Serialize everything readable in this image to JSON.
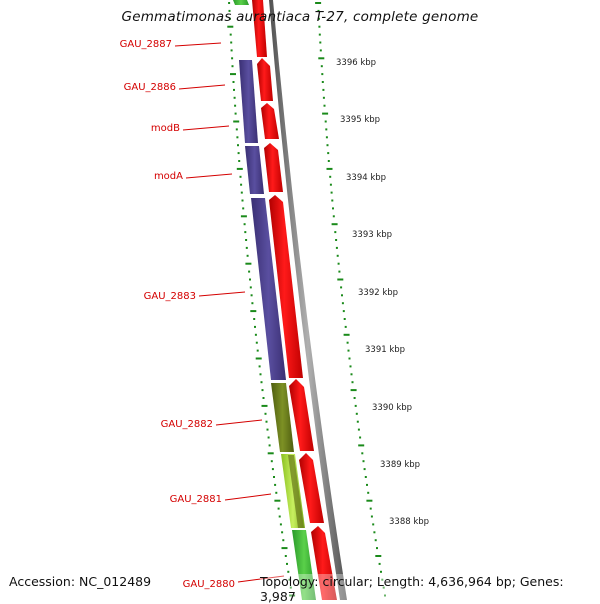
{
  "title": "Gemmatimonas aurantiaca T-27, complete genome",
  "footer": {
    "accession": "Accession: NC_012489",
    "summary": "Topology: circular; Length: 4,636,964 bp; Genes: 3,987"
  },
  "colors": {
    "forward_strand": "#ff0000",
    "gene_purple": "#4b3f8c",
    "gene_olive": "#6b7d1c",
    "gene_yellowgreen": "#9acd32",
    "gene_green": "#3cb034",
    "label_red": "#d40000",
    "tick_green": "#1a8a1a",
    "backbone_gray": "#808080"
  },
  "genes": [
    {
      "name": "GAU_2887"
    },
    {
      "name": "GAU_2886"
    },
    {
      "name": "modB"
    },
    {
      "name": "modA"
    },
    {
      "name": "GAU_2883"
    },
    {
      "name": "GAU_2882"
    },
    {
      "name": "GAU_2881"
    },
    {
      "name": "GAU_2880"
    }
  ],
  "kbp_ticks": [
    "3396 kbp",
    "3395 kbp",
    "3394 kbp",
    "3393 kbp",
    "3392 kbp",
    "3391 kbp",
    "3390 kbp",
    "3389 kbp",
    "3388 kbp"
  ]
}
